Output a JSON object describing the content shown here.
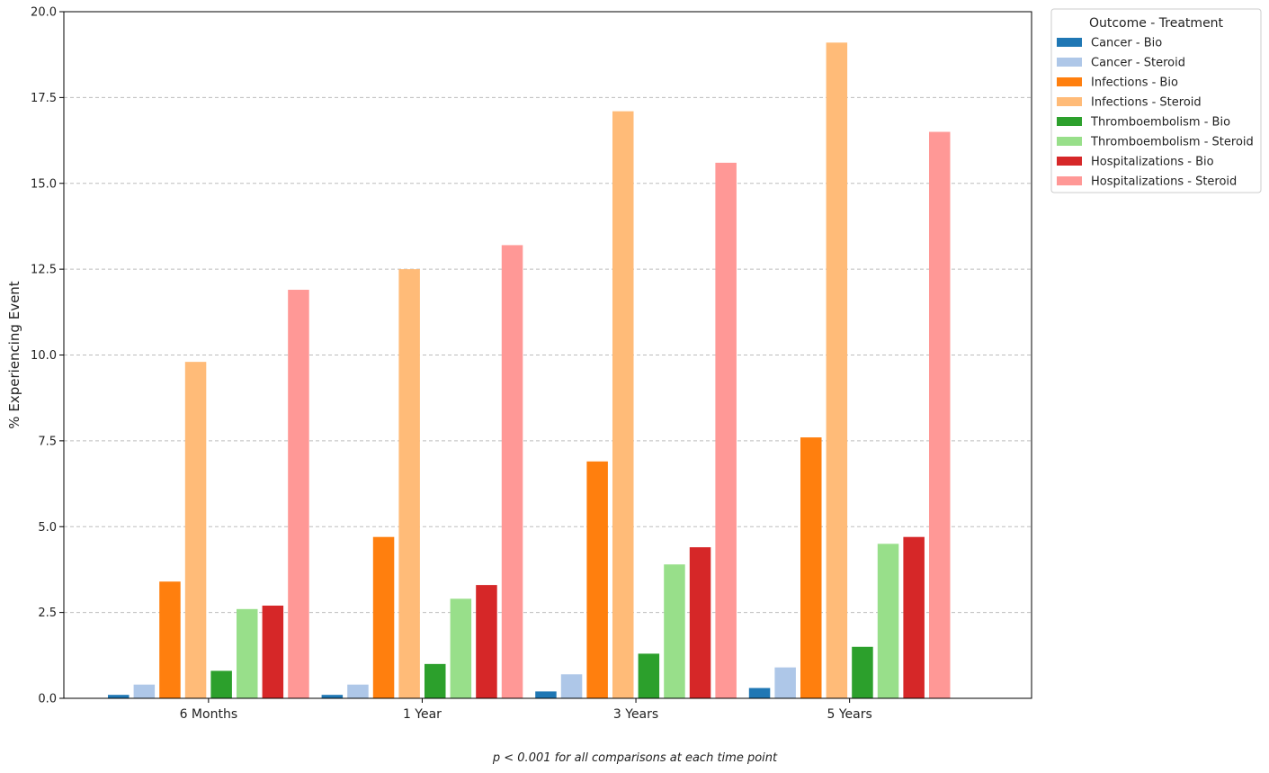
{
  "chart_data": {
    "type": "bar",
    "categories": [
      "6 Months",
      "1 Year",
      "3 Years",
      "5 Years"
    ],
    "ylabel": "% Experiencing Event",
    "xlabel": "",
    "ylim": [
      0,
      20
    ],
    "yticks": [
      "0.0",
      "2.5",
      "5.0",
      "7.5",
      "10.0",
      "12.5",
      "15.0",
      "17.5",
      "20.0"
    ],
    "grid": "y-dashed",
    "legend": {
      "title": "Outcome - Treatment",
      "placement": "outside-top-right"
    },
    "footnote": "p < 0.001 for all comparisons at each time point",
    "series": [
      {
        "name": "Cancer - Bio",
        "color": "#1f77b4",
        "values": [
          0.1,
          0.1,
          0.2,
          0.3
        ]
      },
      {
        "name": "Cancer - Steroid",
        "color": "#aec7e8",
        "values": [
          0.4,
          0.4,
          0.7,
          0.9
        ]
      },
      {
        "name": "Infections - Bio",
        "color": "#ff7f0e",
        "values": [
          3.4,
          4.7,
          6.9,
          7.6
        ]
      },
      {
        "name": "Infections - Steroid",
        "color": "#ffbb78",
        "values": [
          9.8,
          12.5,
          17.1,
          19.1
        ]
      },
      {
        "name": "Thromboembolism - Bio",
        "color": "#2ca02c",
        "values": [
          0.8,
          1.0,
          1.3,
          1.5
        ]
      },
      {
        "name": "Thromboembolism - Steroid",
        "color": "#98df8a",
        "values": [
          2.6,
          2.9,
          3.9,
          4.5
        ]
      },
      {
        "name": "Hospitalizations - Bio",
        "color": "#d62728",
        "values": [
          2.7,
          3.3,
          4.4,
          4.7
        ]
      },
      {
        "name": "Hospitalizations - Steroid",
        "color": "#ff9896",
        "values": [
          11.9,
          13.2,
          15.6,
          16.5
        ]
      }
    ]
  }
}
